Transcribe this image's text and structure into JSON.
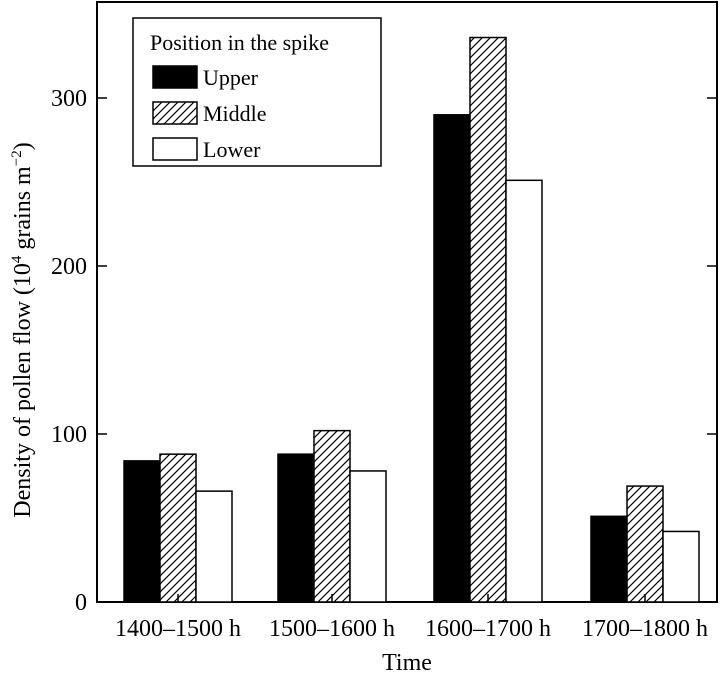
{
  "chart_data": {
    "type": "bar",
    "title": "",
    "xlabel": "Time",
    "ylabel": "Density of pollen flow (10",
    "ylabel_unit_sup": "4",
    "ylabel_unit_mid": " grains m",
    "ylabel_unit_sup2": "−2",
    "ylabel_unit_end": ")",
    "categories": [
      "1400–1500 h",
      "1500–1600 h",
      "1600–1700 h",
      "1700–1800 h"
    ],
    "series": [
      {
        "name": "Upper",
        "pattern": "solid",
        "values": [
          84,
          88,
          290,
          51
        ]
      },
      {
        "name": "Middle",
        "pattern": "hatched",
        "values": [
          88,
          102,
          336,
          69
        ]
      },
      {
        "name": "Lower",
        "pattern": "empty",
        "values": [
          66,
          78,
          251,
          42
        ]
      }
    ],
    "ylim": [
      0,
      350
    ],
    "yticks": [
      0,
      100,
      200,
      300
    ],
    "legend": {
      "title": "Position in the spike",
      "placement": "top-left"
    },
    "grid": false,
    "colors": {
      "solid": "#000000",
      "hatched": "#ffffff",
      "empty": "#ffffff",
      "stroke": "#000000"
    }
  }
}
